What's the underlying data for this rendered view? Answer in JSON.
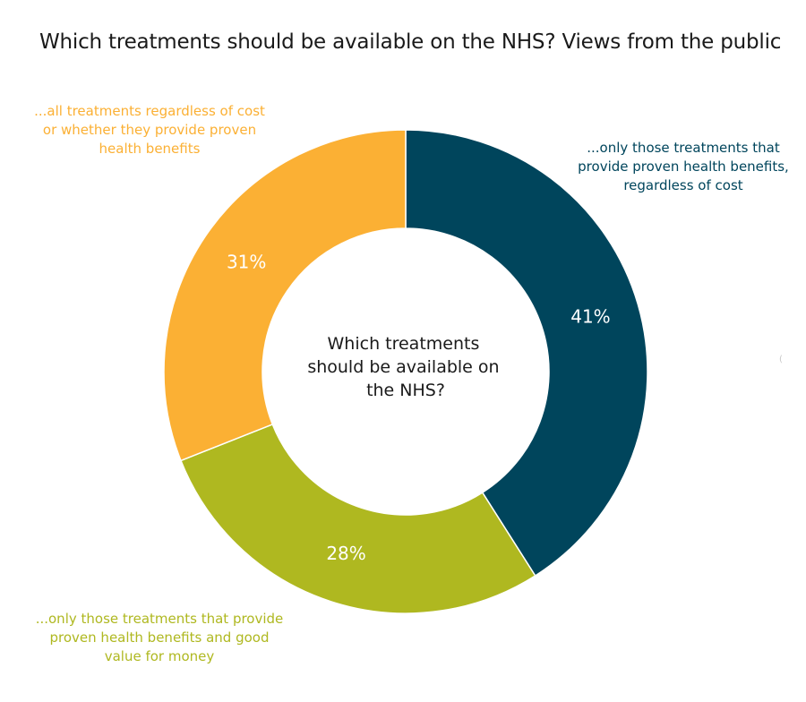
{
  "chart_data": {
    "type": "pie",
    "variant": "donut",
    "title": "Which treatments should be available on the NHS? Views from the public",
    "center_text": [
      "Which treatments",
      "should be available on",
      "the NHS?"
    ],
    "start_angle_deg": 0,
    "direction": "clockwise",
    "slices": [
      {
        "value": 41,
        "label": "41%",
        "color": "#00455c",
        "annotation": [
          "...only those treatments that",
          "provide proven health benefits,",
          "regardless of cost"
        ]
      },
      {
        "value": 28,
        "label": "28%",
        "color": "#afb820",
        "annotation": [
          "...only those treatments that provide",
          "proven health benefits and good",
          "value for money"
        ]
      },
      {
        "value": 31,
        "label": "31%",
        "color": "#fbb034",
        "annotation": [
          "...all treatments regardless of cost",
          "or whether they provide proven",
          "health benefits"
        ]
      }
    ],
    "stray_mark": "("
  }
}
